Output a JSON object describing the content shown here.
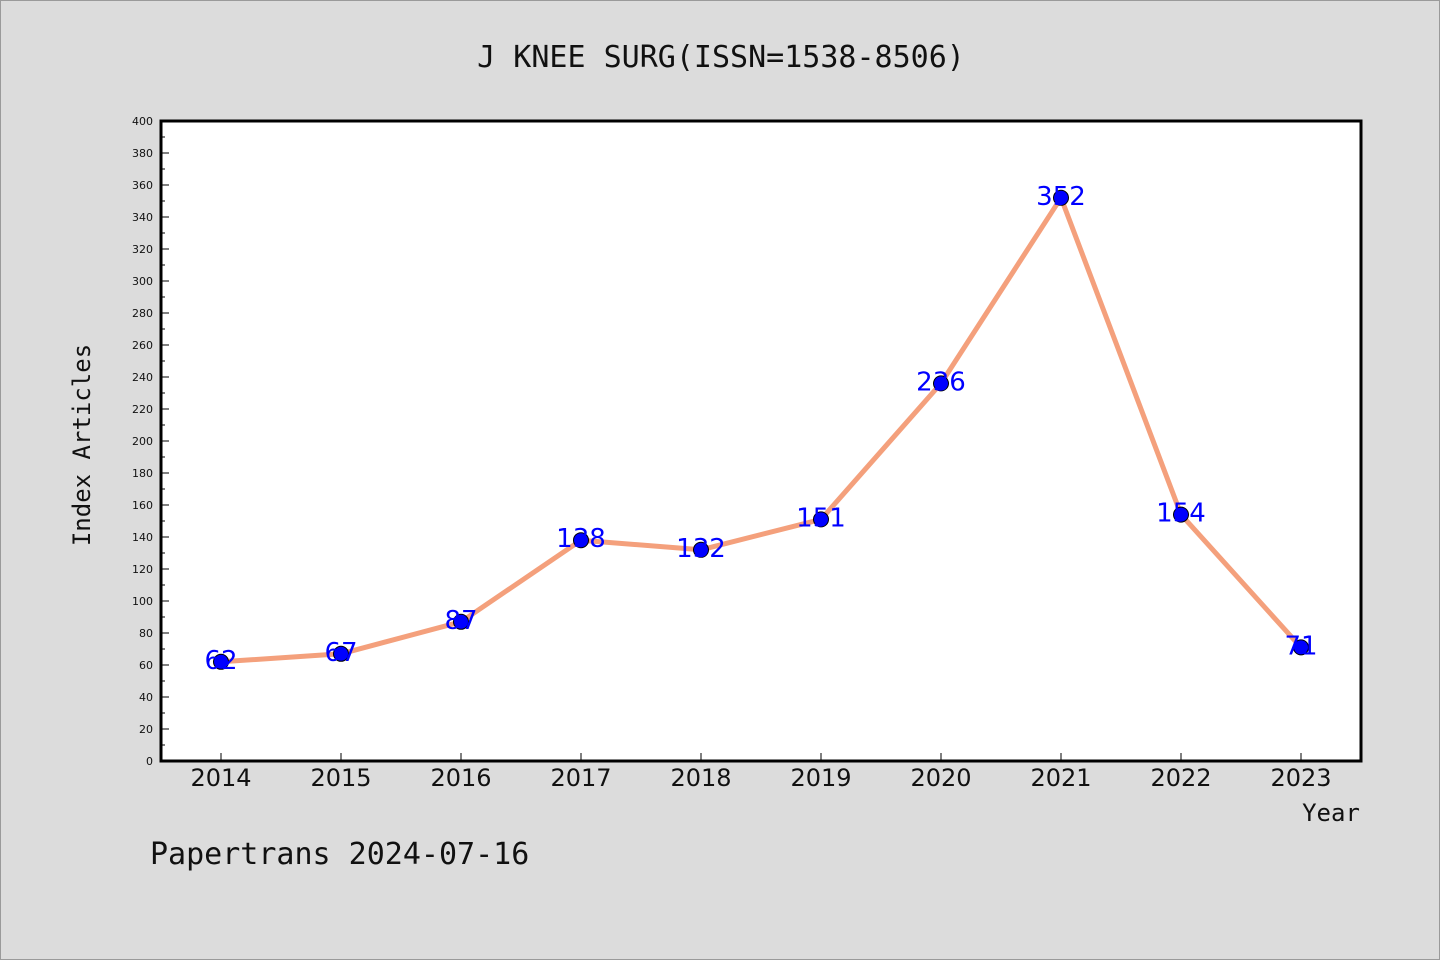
{
  "chart_data": {
    "type": "line",
    "title": "J KNEE SURG(ISSN=1538-8506)",
    "xlabel": "Year",
    "ylabel": "Index Articles",
    "categories": [
      "2014",
      "2015",
      "2016",
      "2017",
      "2018",
      "2019",
      "2020",
      "2021",
      "2022",
      "2023"
    ],
    "series": [
      {
        "values": [
          62,
          67,
          87,
          138,
          132,
          151,
          236,
          352,
          154,
          71
        ],
        "labels": [
          "62",
          "67",
          "87",
          "138",
          "132",
          "151",
          "236",
          "352",
          "154",
          "71"
        ]
      }
    ],
    "ylim": [
      0,
      400
    ],
    "yticks_major": [
      0,
      20,
      40,
      60,
      80,
      100,
      120,
      140,
      160,
      180,
      200,
      220,
      240,
      260,
      280,
      300,
      320,
      340,
      360,
      380,
      400
    ],
    "grid": false,
    "legend": "none",
    "colors": {
      "line": "#f4a07c",
      "marker": "#0000ff",
      "data_label": "#0000ff",
      "plot_background": "#ffffff",
      "figure_background": "#dcdcdc"
    }
  },
  "footer": {
    "text": "Papertrans 2024-07-16"
  }
}
